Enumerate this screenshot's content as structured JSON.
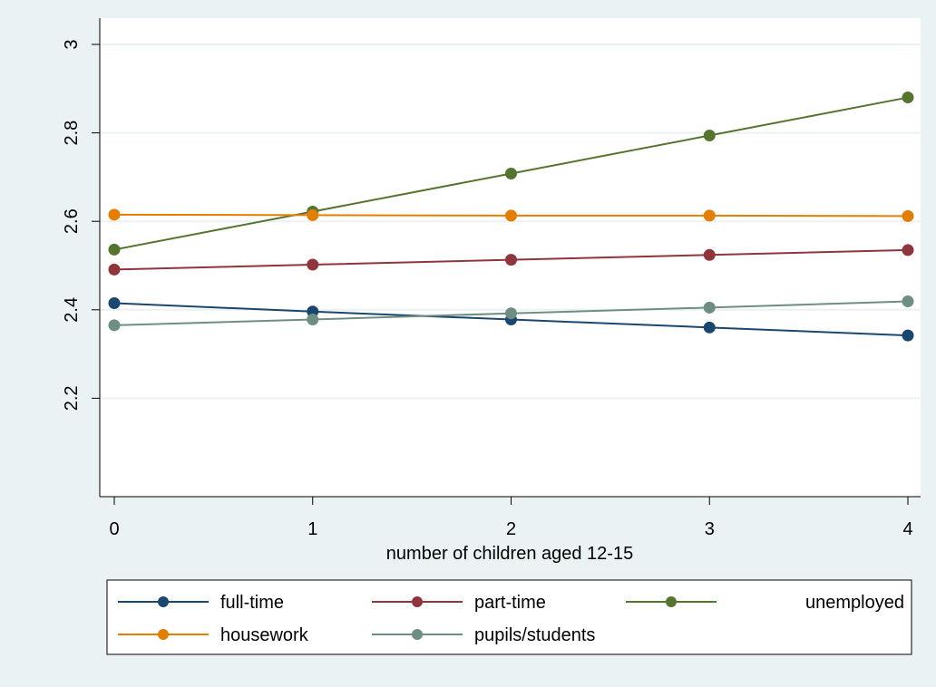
{
  "chart_data": {
    "type": "line",
    "title": "",
    "xlabel": "number of children aged 12-15",
    "ylabel": "",
    "x": [
      0,
      1,
      2,
      3,
      4
    ],
    "xticks": [
      "0",
      "1",
      "2",
      "3",
      "4"
    ],
    "xlim": [
      0,
      4
    ],
    "yticks": [
      "2.2",
      "2.4",
      "2.6",
      "2.8",
      "3"
    ],
    "ylim": [
      2.0,
      3.0
    ],
    "grid": true,
    "legend_position": "bottom",
    "series": [
      {
        "name": "full-time",
        "color": "#1a476f",
        "values": [
          2.415,
          2.396,
          2.378,
          2.36,
          2.342
        ]
      },
      {
        "name": "part-time",
        "color": "#90353b",
        "values": [
          2.491,
          2.502,
          2.513,
          2.524,
          2.535
        ]
      },
      {
        "name": "unemployed",
        "color": "#55752f",
        "values": [
          2.536,
          2.622,
          2.708,
          2.794,
          2.88
        ]
      },
      {
        "name": "housework",
        "color": "#e37e00",
        "values": [
          2.615,
          2.614,
          2.613,
          2.613,
          2.612
        ]
      },
      {
        "name": "pupils/students",
        "color": "#6e8e84",
        "values": [
          2.365,
          2.378,
          2.392,
          2.405,
          2.419
        ]
      }
    ]
  }
}
